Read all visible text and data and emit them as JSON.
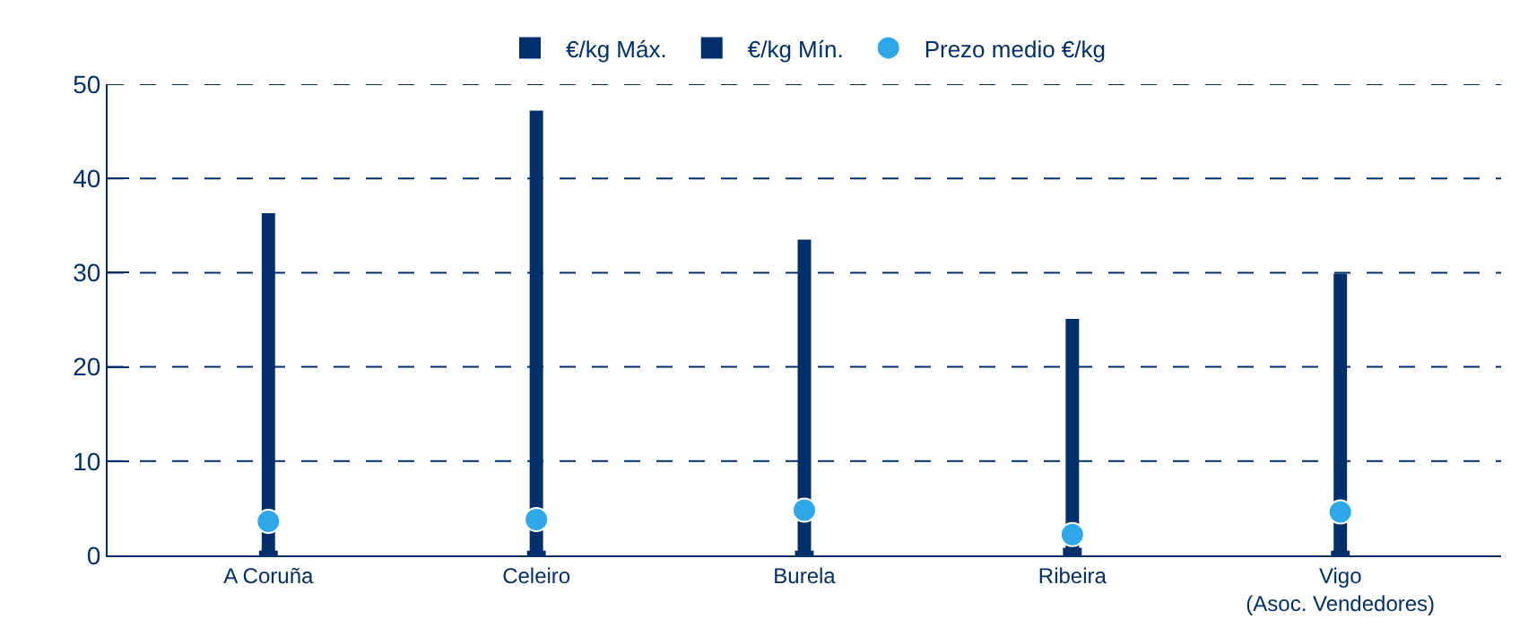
{
  "chart_data": {
    "type": "bar",
    "categories": [
      "A Coruña",
      "Celeiro",
      "Burela",
      "Ribeira",
      "Vigo\n(Asoc. Vendedores)"
    ],
    "series": [
      {
        "name": "€/kg Máx.",
        "color": "#002f6c",
        "values": [
          36.3,
          47.2,
          33.5,
          25.1,
          29.9
        ]
      },
      {
        "name": "€/kg Mín.",
        "color": "#002f6c",
        "values": [
          0.5,
          0.5,
          0.5,
          0.8,
          0.5
        ]
      },
      {
        "name": "Prezo medio €/kg",
        "type": "scatter",
        "color": "#2ea8e8",
        "marker": "circle",
        "values": [
          3.6,
          3.8,
          4.8,
          2.2,
          4.6
        ]
      }
    ],
    "ylim": [
      0,
      50
    ],
    "yticks": [
      0,
      10,
      20,
      30,
      40,
      50
    ],
    "grid": "y",
    "legend": "top"
  }
}
